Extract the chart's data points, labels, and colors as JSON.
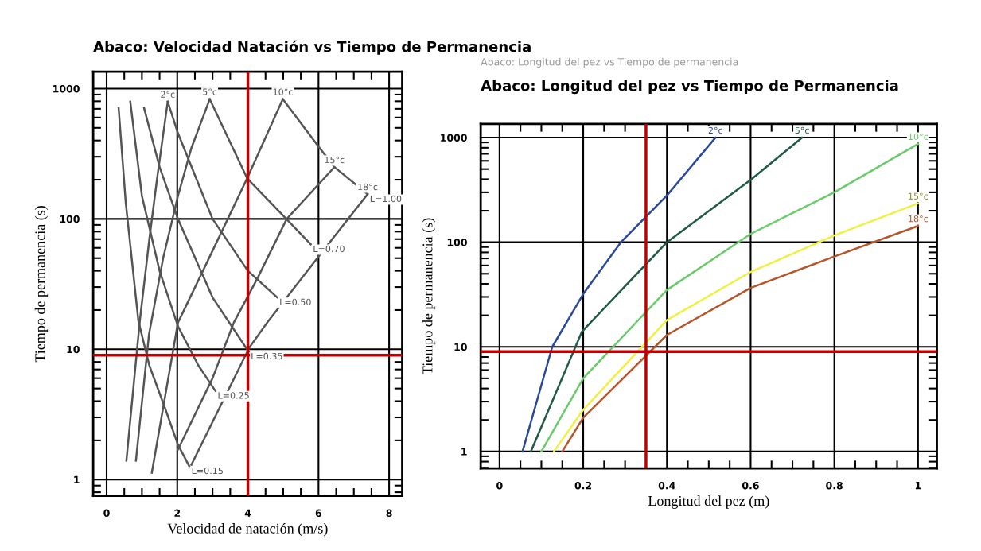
{
  "chart_data": [
    {
      "type": "line",
      "title": "Abaco: Velocidad Natación vs Tiempo de Permanencia",
      "xlabel": "Velocidad de natación (m/s)",
      "ylabel": "Tiempo de permanencia (s)",
      "log": "y",
      "grid": true,
      "xlim": [
        -0.38,
        8.37
      ],
      "ylim": [
        0.75,
        1350
      ],
      "xticks": [
        0,
        2,
        4,
        6,
        8
      ],
      "yticks": [
        1,
        10,
        100,
        1000
      ],
      "series": [
        {
          "name": "2°c",
          "color": "#555555",
          "x": [
            0.56,
            0.94,
            1.21,
            1.44,
            1.73
          ],
          "values": [
            1.4,
            16.5,
            70,
            215,
            795
          ]
        },
        {
          "name": "5°c",
          "color": "#555555",
          "x": [
            0.83,
            1.2,
            1.6,
            2.02,
            2.4,
            2.92
          ],
          "values": [
            1.4,
            13,
            50,
            150,
            350,
            830
          ]
        },
        {
          "name": "10°c",
          "color": "#555555",
          "x": [
            1.28,
            2.02,
            3.0,
            3.98,
            4.99
          ],
          "values": [
            1.13,
            16,
            57,
            205,
            830
          ]
        },
        {
          "name": "15°c",
          "color": "#555555",
          "x": [
            2.02,
            3.0,
            3.6,
            4.27,
            5.1,
            6.45
          ],
          "values": [
            1.7,
            6,
            16,
            35,
            100,
            250
          ]
        },
        {
          "name": "18°c",
          "color": "#555555",
          "x": [
            2.4,
            4.04,
            4.58,
            6.04,
            7.39
          ],
          "values": [
            1.3,
            10.3,
            16.5,
            53,
            155
          ]
        },
        {
          "name": "L=0.15",
          "color": "#555555",
          "x": [
            0.34,
            0.54,
            0.9,
            1.21,
            1.66,
            2.02,
            2.34
          ],
          "values": [
            710,
            135,
            16.5,
            7.5,
            3.5,
            1.85,
            1.27
          ]
        },
        {
          "name": "L=0.25",
          "color": "#555555",
          "x": [
            0.67,
            1.0,
            1.5,
            2.02,
            2.6,
            3.08
          ],
          "values": [
            795,
            150,
            40,
            15,
            7.5,
            4.8
          ]
        },
        {
          "name": "L=0.35",
          "color": "#555555",
          "x": [
            1.06,
            1.5,
            2.02,
            3.0,
            4.02
          ],
          "values": [
            710,
            250,
            100,
            25,
            9.6
          ]
        },
        {
          "name": "L=0.50",
          "color": "#555555",
          "x": [
            1.73,
            2.02,
            3.0,
            4.0,
            4.83
          ],
          "values": [
            795,
            455,
            100,
            40,
            25
          ]
        },
        {
          "name": "L=0.70",
          "color": "#555555",
          "x": [
            2.92,
            3.98,
            5.78
          ],
          "values": [
            830,
            205,
            64
          ]
        },
        {
          "name": "L=1.00",
          "color": "#555555",
          "x": [
            4.99,
            6.0,
            6.45,
            7.39
          ],
          "values": [
            830,
            360,
            250,
            155
          ]
        }
      ],
      "ref_lines": [
        {
          "axis": "x",
          "value": 4,
          "color": "#c00000"
        },
        {
          "axis": "y",
          "value": 9,
          "color": "#c00000"
        }
      ]
    },
    {
      "type": "line",
      "title": "Abaco: Longitud del pez vs Tiempo de Permanencia",
      "subtitle": "Abaco: Longitud del pez vs Tiempo de permanencia",
      "xlabel": "Longitud del pez (m)",
      "ylabel": "Tiempo de permanencia (s)",
      "log": "y",
      "grid": true,
      "xlim": [
        -0.045,
        1.045
      ],
      "ylim": [
        0.69,
        1350
      ],
      "xticks": [
        0,
        0.2,
        0.4,
        0.6,
        0.8,
        1
      ],
      "yticks": [
        1,
        10,
        100,
        1000
      ],
      "series": [
        {
          "name": "2°c",
          "color": "#2b4a9a",
          "x": [
            0.055,
            0.126,
            0.2,
            0.29,
            0.4,
            0.516
          ],
          "values": [
            1,
            10,
            32,
            100,
            280,
            1000
          ]
        },
        {
          "name": "5°c",
          "color": "#1f5a4a",
          "x": [
            0.075,
            0.197,
            0.4,
            0.6,
            0.723
          ],
          "values": [
            1,
            14,
            100,
            395,
            1000
          ]
        },
        {
          "name": "10°c",
          "color": "#6acb6a",
          "x": [
            0.1,
            0.2,
            0.4,
            0.6,
            0.8,
            1.0
          ],
          "values": [
            1,
            5,
            35,
            120,
            300,
            870
          ]
        },
        {
          "name": "15°c",
          "color": "#f0f040",
          "x": [
            0.13,
            0.2,
            0.4,
            0.6,
            0.8,
            1.0
          ],
          "values": [
            1,
            2.5,
            18,
            52,
            116,
            235
          ]
        },
        {
          "name": "18°c",
          "color": "#b5552a",
          "x": [
            0.15,
            0.2,
            0.4,
            0.6,
            0.8,
            1.0
          ],
          "values": [
            1,
            2.1,
            13,
            36.6,
            73,
            143
          ]
        }
      ],
      "ref_lines": [
        {
          "axis": "x",
          "value": 0.35,
          "color": "#c00000"
        },
        {
          "axis": "y",
          "value": 9,
          "color": "#c00000"
        }
      ]
    }
  ]
}
